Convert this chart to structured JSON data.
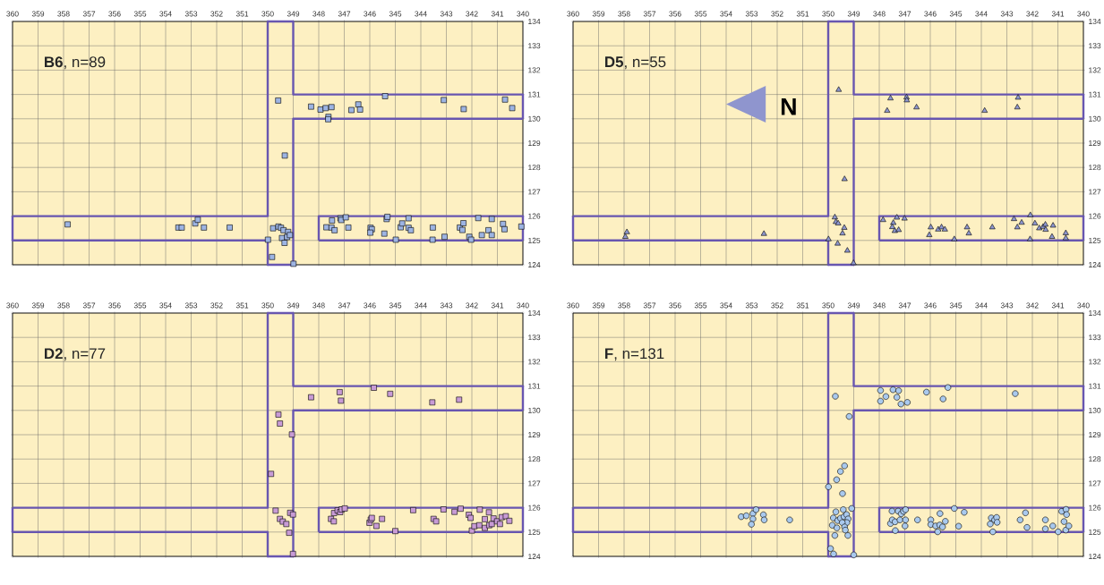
{
  "chart_data": [
    {
      "type": "scatter",
      "title": "**B6**, n=89",
      "grid": true,
      "xlim": [
        360,
        340
      ],
      "ylim": [
        124,
        134
      ],
      "xticks": [
        360,
        359,
        358,
        357,
        356,
        355,
        354,
        353,
        352,
        351,
        350,
        349,
        348,
        347,
        346,
        345,
        344,
        343,
        342,
        341,
        340
      ],
      "yticks": [
        124,
        125,
        126,
        127,
        128,
        129,
        130,
        131,
        132,
        133,
        134
      ],
      "series": [
        {
          "type": "step",
          "color": "#6856b0",
          "marker": "none",
          "x": [
            360,
            360,
            350,
            349,
            340
          ],
          "values": [
            126,
            125,
            124,
            130,
            130
          ]
        },
        {
          "type": "step",
          "color": "#6856b0",
          "marker": "none",
          "x": [
            360,
            350,
            349,
            340,
            340
          ],
          "values": [
            126,
            134,
            131,
            131,
            130
          ]
        },
        {
          "type": "step",
          "color": "#6856b0",
          "marker": "none",
          "x": [
            348,
            348,
            340,
            340
          ],
          "values": [
            125,
            126,
            126,
            125
          ]
        },
        {
          "type": "step",
          "color": "#6856b0",
          "marker": "none",
          "x": [
            348,
            340
          ],
          "values": [
            125,
            125
          ]
        },
        {
          "color": "#9db4e3",
          "marker": "square",
          "x": [
            357.84,
            353.5,
            353.37,
            352.84,
            352.74,
            352.5,
            351.49,
            349.99,
            349.83,
            349.79,
            349.59,
            349.58,
            349.48,
            349.38,
            349.44,
            349.34,
            349.33,
            349.2,
            349.24,
            349.13,
            348.99,
            348.3,
            347.93,
            347.73,
            347.5,
            347.62,
            347.63,
            347.7,
            347.5,
            347.48,
            347.38,
            347.15,
            347.12,
            346.94,
            346.84,
            346.72,
            346.45,
            346.38,
            345.97,
            345.92,
            345.98,
            345.43,
            345.4,
            345.34,
            345.31,
            344.98,
            344.79,
            344.73,
            344.48,
            344.48,
            344.39,
            343.53,
            343.54,
            343.1,
            343.07,
            342.47,
            342.37,
            342.33,
            342.32,
            342.1,
            342.03,
            341.75,
            341.61,
            341.35,
            341.22,
            341.22,
            340.78,
            340.72,
            340.7,
            340.42,
            340.06
          ],
          "values": [
            125.66,
            125.53,
            125.53,
            125.7,
            125.85,
            125.53,
            125.53,
            125.03,
            124.32,
            125.5,
            130.75,
            125.57,
            125.52,
            125.42,
            125.1,
            124.9,
            128.49,
            125.35,
            125.14,
            125.22,
            124.04,
            130.5,
            130.38,
            130.44,
            130.48,
            130.08,
            129.98,
            125.54,
            125.53,
            125.82,
            125.42,
            125.91,
            125.84,
            125.95,
            125.53,
            130.36,
            130.59,
            130.38,
            125.52,
            125.46,
            125.32,
            125.28,
            130.93,
            125.88,
            125.97,
            125.03,
            125.54,
            125.7,
            125.91,
            125.52,
            125.42,
            125.53,
            125.03,
            130.77,
            125.15,
            125.53,
            125.43,
            125.71,
            130.4,
            125.15,
            125.03,
            125.92,
            125.22,
            125.42,
            125.88,
            125.22,
            125.68,
            125.46,
            130.79,
            130.44,
            125.57
          ]
        }
      ]
    },
    {
      "type": "scatter",
      "title": "**D5**, n=55",
      "grid": true,
      "annotations": [
        "N"
      ],
      "xlim": [
        360,
        340
      ],
      "ylim": [
        124,
        134
      ],
      "xticks": [
        360,
        359,
        358,
        357,
        356,
        355,
        354,
        353,
        352,
        351,
        350,
        349,
        348,
        347,
        346,
        345,
        344,
        343,
        342,
        341,
        340
      ],
      "yticks": [
        124,
        125,
        126,
        127,
        128,
        129,
        130,
        131,
        132,
        133,
        134
      ],
      "series": [
        {
          "type": "step",
          "color": "#6856b0",
          "marker": "none",
          "x": [
            360,
            360,
            350,
            349,
            340
          ],
          "values": [
            126,
            125,
            124,
            130,
            130
          ]
        },
        {
          "type": "step",
          "color": "#6856b0",
          "marker": "none",
          "x": [
            360,
            350,
            349,
            340,
            340
          ],
          "values": [
            126,
            134,
            131,
            131,
            130
          ]
        },
        {
          "type": "step",
          "color": "#6856b0",
          "marker": "none",
          "x": [
            348,
            348,
            340,
            340
          ],
          "values": [
            125,
            126,
            126,
            125
          ]
        },
        {
          "type": "step",
          "color": "#6856b0",
          "marker": "none",
          "x": [
            348,
            340
          ],
          "values": [
            125,
            125
          ]
        },
        {
          "color": "#8e97d0",
          "marker": "triangle",
          "x": [
            357.89,
            357.95,
            352.52,
            349.99,
            349.59,
            349.74,
            349.7,
            349.61,
            349.37,
            349.44,
            349.63,
            349.25,
            349.36,
            349.01,
            347.56,
            347.69,
            346.93,
            346.92,
            346.54,
            343.87,
            342.56,
            342.59,
            347.85,
            347.45,
            347.49,
            347.39,
            347.31,
            347.24,
            347.01,
            345.98,
            346.04,
            345.69,
            345.56,
            345.43,
            345.06,
            344.56,
            344.49,
            343.57,
            342.72,
            342.59,
            342.42,
            342.08,
            342.09,
            341.9,
            341.73,
            341.58,
            341.49,
            341.48,
            341.19,
            341.23,
            340.69,
            340.69
          ],
          "values": [
            125.34,
            125.15,
            125.27,
            125.05,
            131.19,
            125.95,
            125.76,
            125.7,
            125.52,
            125.29,
            124.87,
            124.58,
            127.52,
            124.07,
            130.84,
            130.33,
            130.88,
            130.76,
            130.47,
            130.33,
            130.87,
            130.47,
            125.84,
            125.72,
            125.55,
            125.39,
            125.94,
            125.43,
            125.9,
            125.54,
            125.22,
            125.45,
            125.54,
            125.45,
            125.05,
            125.54,
            125.29,
            125.54,
            125.88,
            125.54,
            125.73,
            126.04,
            125.05,
            125.7,
            125.5,
            125.56,
            125.65,
            125.44,
            125.61,
            125.15,
            125.3,
            125.09
          ]
        }
      ]
    },
    {
      "type": "scatter",
      "title": "**D2**, n=77",
      "grid": true,
      "xlim": [
        360,
        340
      ],
      "ylim": [
        124,
        134
      ],
      "xticks": [
        360,
        359,
        358,
        357,
        356,
        355,
        354,
        353,
        352,
        351,
        350,
        349,
        348,
        347,
        346,
        345,
        344,
        343,
        342,
        341,
        340
      ],
      "yticks": [
        124,
        125,
        126,
        127,
        128,
        129,
        130,
        131,
        132,
        133,
        134
      ],
      "series": [
        {
          "type": "step",
          "color": "#6856b0",
          "marker": "none",
          "x": [
            360,
            360,
            350,
            349,
            340
          ],
          "values": [
            126,
            125,
            124,
            130,
            130
          ]
        },
        {
          "type": "step",
          "color": "#6856b0",
          "marker": "none",
          "x": [
            360,
            350,
            349,
            340,
            340
          ],
          "values": [
            126,
            134,
            131,
            131,
            130
          ]
        },
        {
          "type": "step",
          "color": "#6856b0",
          "marker": "none",
          "x": [
            348,
            348,
            340,
            340
          ],
          "values": [
            125,
            126,
            126,
            125
          ]
        },
        {
          "type": "step",
          "color": "#6856b0",
          "marker": "none",
          "x": [
            348,
            340
          ],
          "values": [
            125,
            125
          ]
        },
        {
          "color": "#c89bd6",
          "marker": "square",
          "x": [
            349.87,
            349.58,
            349.52,
            349.05,
            349.69,
            349.52,
            349.41,
            349.27,
            349.16,
            349.12,
            349.01,
            349.01,
            348.3,
            347.18,
            347.13,
            345.84,
            345.2,
            343.55,
            342.5,
            347.52,
            347.41,
            347.4,
            347.26,
            347.16,
            347.1,
            346.98,
            346.01,
            345.96,
            345.92,
            345.74,
            345.52,
            345.0,
            344.3,
            343.5,
            343.4,
            343.11,
            342.68,
            342.44,
            342.12,
            342.05,
            342.0,
            341.9,
            341.71,
            341.69,
            341.49,
            341.49,
            341.33,
            341.32,
            341.22,
            341.15,
            341.01,
            340.9,
            340.83,
            340.67,
            340.53
          ],
          "values": [
            127.39,
            129.83,
            129.46,
            129.01,
            125.88,
            125.54,
            125.43,
            125.33,
            124.97,
            125.79,
            125.72,
            124.1,
            130.54,
            130.75,
            130.4,
            130.93,
            130.68,
            130.33,
            130.44,
            125.54,
            125.44,
            125.78,
            125.89,
            125.82,
            125.93,
            125.97,
            125.38,
            125.51,
            125.58,
            125.25,
            125.54,
            125.04,
            125.9,
            125.54,
            125.44,
            125.93,
            125.83,
            125.96,
            125.71,
            125.58,
            125.06,
            125.24,
            125.28,
            125.92,
            125.53,
            125.17,
            125.81,
            125.28,
            125.33,
            125.56,
            125.44,
            125.33,
            125.61,
            125.65,
            125.46
          ]
        }
      ]
    },
    {
      "type": "scatter",
      "title": "**F**, n=131",
      "grid": true,
      "xlim": [
        360,
        340
      ],
      "ylim": [
        124,
        134
      ],
      "xticks": [
        360,
        359,
        358,
        357,
        356,
        355,
        354,
        353,
        352,
        351,
        350,
        349,
        348,
        347,
        346,
        345,
        344,
        343,
        342,
        341,
        340
      ],
      "yticks": [
        124,
        125,
        126,
        127,
        128,
        129,
        130,
        131,
        132,
        133,
        134
      ],
      "series": [
        {
          "type": "step",
          "color": "#6856b0",
          "marker": "none",
          "x": [
            360,
            360,
            350,
            349,
            340
          ],
          "values": [
            126,
            125,
            124,
            130,
            130
          ]
        },
        {
          "type": "step",
          "color": "#6856b0",
          "marker": "none",
          "x": [
            360,
            350,
            349,
            340,
            340
          ],
          "values": [
            126,
            134,
            131,
            131,
            130
          ]
        },
        {
          "type": "step",
          "color": "#6856b0",
          "marker": "none",
          "x": [
            348,
            348,
            340,
            340
          ],
          "values": [
            125,
            126,
            126,
            125
          ]
        },
        {
          "type": "step",
          "color": "#6856b0",
          "marker": "none",
          "x": [
            348,
            340
          ],
          "values": [
            125,
            125
          ]
        },
        {
          "color": "#a9c9ee",
          "marker": "circle",
          "x": [
            349.72,
            349.18,
            347.95,
            347.46,
            347.24,
            347.74,
            347.31,
            347.95,
            347.15,
            346.9,
            346.15,
            345.5,
            345.31,
            342.67,
            349.36,
            349.52,
            349.67,
            349.99,
            349.44,
            353.41,
            353.21,
            352.95,
            352.83,
            352.95,
            353.01,
            352.54,
            352.51,
            351.51,
            349.7,
            349.8,
            349.84,
            349.63,
            349.52,
            349.41,
            349.38,
            349.28,
            349.22,
            349.27,
            349.45,
            349.36,
            349.66,
            349.33,
            349.08,
            349.74,
            349.23,
            349.91,
            349.79,
            349.0,
            347.5,
            347.56,
            347.49,
            347.38,
            347.37,
            347.26,
            347.19,
            347.14,
            347.05,
            346.97,
            346.97,
            346.99,
            346.5,
            345.98,
            345.98,
            345.79,
            345.71,
            345.62,
            345.63,
            345.52,
            345.41,
            345.06,
            344.89,
            344.67,
            343.65,
            343.61,
            343.55,
            343.48,
            343.4,
            343.38,
            342.48,
            342.27,
            342.21,
            341.49,
            341.49,
            341.2,
            340.99,
            340.85,
            340.68,
            340.66,
            340.76,
            340.69,
            340.57
          ],
          "values": [
            130.58,
            129.75,
            130.82,
            130.85,
            130.81,
            130.57,
            130.54,
            130.38,
            130.26,
            130.33,
            130.75,
            130.47,
            130.94,
            130.69,
            127.72,
            127.49,
            127.15,
            126.86,
            126.58,
            125.63,
            125.67,
            125.76,
            125.92,
            125.54,
            125.32,
            125.71,
            125.5,
            125.5,
            125.83,
            125.58,
            125.28,
            125.47,
            125.57,
            125.92,
            125.63,
            125.72,
            125.54,
            125.39,
            125.39,
            125.21,
            125.17,
            125.08,
            125.97,
            124.86,
            124.86,
            124.32,
            124.1,
            124.06,
            125.86,
            125.35,
            125.5,
            125.42,
            125.06,
            125.86,
            125.5,
            125.75,
            125.85,
            125.92,
            125.5,
            125.25,
            125.5,
            125.5,
            125.31,
            125.25,
            125.01,
            125.76,
            125.29,
            125.21,
            125.44,
            125.97,
            125.24,
            125.81,
            125.33,
            125.58,
            125.01,
            125.5,
            125.6,
            125.4,
            125.5,
            125.79,
            125.19,
            125.5,
            125.13,
            125.25,
            125.01,
            125.85,
            125.93,
            125.72,
            125.43,
            125.08,
            125.25
          ]
        }
      ]
    }
  ]
}
